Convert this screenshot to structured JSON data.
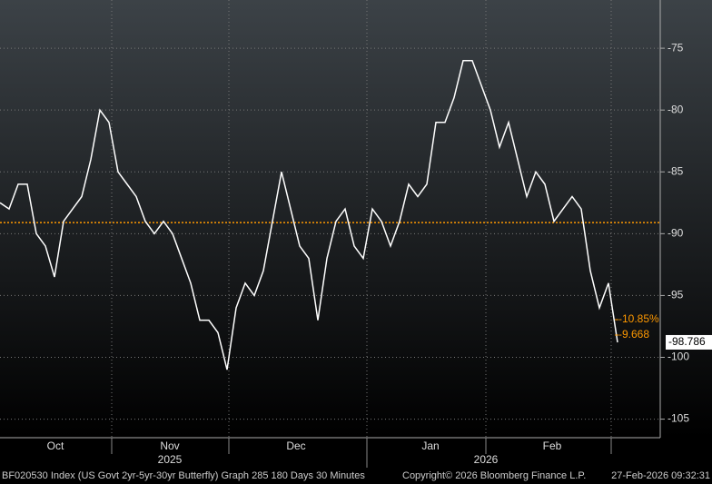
{
  "chart_data": {
    "type": "line",
    "series": [
      {
        "color": "#ffffff",
        "values": [
          -87.5,
          -88,
          -86,
          -86,
          -90,
          -91,
          -93.5,
          -89,
          -88,
          -87,
          -84,
          -80,
          -81,
          -85,
          -86,
          -87,
          -89,
          -90,
          -89,
          -90,
          -92,
          -94,
          -97,
          -97,
          -98,
          -101,
          -96,
          -94,
          -95,
          -93,
          -89,
          -85,
          -88,
          -91,
          -92,
          -97,
          -92,
          -89,
          -88,
          -91,
          -92,
          -88,
          -89,
          -91,
          -89,
          -86,
          -87,
          -86,
          -81,
          -81,
          -79,
          -76,
          -76,
          -78,
          -80,
          -83,
          -81,
          -84,
          -87,
          -85,
          -86,
          -89,
          -88,
          -87,
          -88,
          -93,
          -96,
          -94,
          -98.786
        ]
      }
    ],
    "months": [
      "Oct",
      "Nov",
      "Dec",
      "Jan",
      "Feb"
    ],
    "years": [
      "2025",
      "2026"
    ],
    "ylim": [
      -106.5,
      -71.1
    ],
    "yticks": [
      -75,
      -80,
      -85,
      -90,
      -95,
      -100,
      -105
    ],
    "grid": true,
    "reference_line": {
      "value": -89.1,
      "color": "#ff9900"
    },
    "annotations": [
      "-10.85%",
      "-9.668"
    ],
    "footer": {
      "left": "BF020530 Index (US Govt 2yr-5yr-30yr Butterfly) Graph 285 180 Days 30 Minutes",
      "middle": "Copyright© 2026 Bloomberg Finance L.P.",
      "right": "27-Feb-2026 09:32:31"
    }
  }
}
